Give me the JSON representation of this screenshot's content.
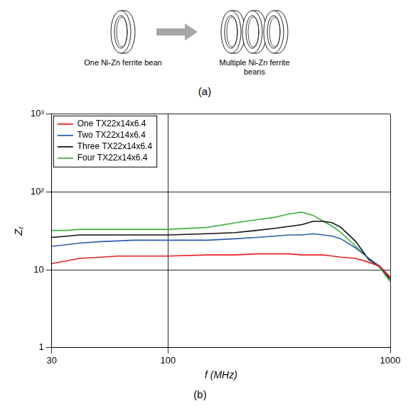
{
  "diagram": {
    "left_label": "One Ni-Zn ferrite bean",
    "right_label": "Multiple Ni-Zn ferrite beans",
    "caption": "(a)"
  },
  "chart_data": {
    "type": "line",
    "title": "(b)",
    "x_label": "f (MHz)",
    "y_label": "Zₜ",
    "log": true,
    "grid": true,
    "legend": "upper left",
    "xlim": [
      30,
      1000
    ],
    "xticks": [
      30,
      100,
      1000
    ],
    "ylim": [
      1,
      1000
    ],
    "yticks": [
      1,
      10,
      {
        "value": 100,
        "label": "10²"
      },
      {
        "value": 1000,
        "label": "10³"
      }
    ],
    "x": [
      30,
      35,
      40,
      50,
      60,
      70,
      80,
      100,
      150,
      200,
      250,
      300,
      350,
      400,
      450,
      500,
      550,
      600,
      700,
      800,
      900,
      1000
    ],
    "series": [
      {
        "name": "One TX22x14x6.4",
        "color": "#e8201c",
        "values": [
          12,
          13,
          14,
          14.5,
          15,
          15,
          15,
          15,
          15.5,
          15.5,
          16,
          16,
          16,
          15.5,
          15.5,
          15.5,
          15,
          14.5,
          14,
          12.5,
          11,
          8
        ]
      },
      {
        "name": "Two TX22x14x6.4",
        "color": "#2a5db0",
        "values": [
          20,
          21,
          22,
          23,
          23.5,
          24,
          24,
          24,
          24,
          25,
          26,
          27,
          28,
          28,
          29,
          28,
          27,
          25,
          19,
          14,
          11,
          8
        ]
      },
      {
        "name": "Three TX22x14x6.4",
        "color": "#111111",
        "values": [
          26,
          27,
          28,
          28,
          28,
          28,
          28,
          28,
          29,
          30,
          32,
          34,
          36,
          38,
          42,
          42,
          40,
          35,
          23,
          13.5,
          11,
          7.5
        ]
      },
      {
        "name": "Four TX22x14x6.4",
        "color": "#3cb43c",
        "values": [
          32,
          32,
          33,
          33,
          33,
          33,
          33,
          33,
          35,
          40,
          44,
          47,
          52,
          55,
          50,
          42,
          36,
          30,
          20,
          14,
          10.5,
          7
        ]
      }
    ]
  }
}
